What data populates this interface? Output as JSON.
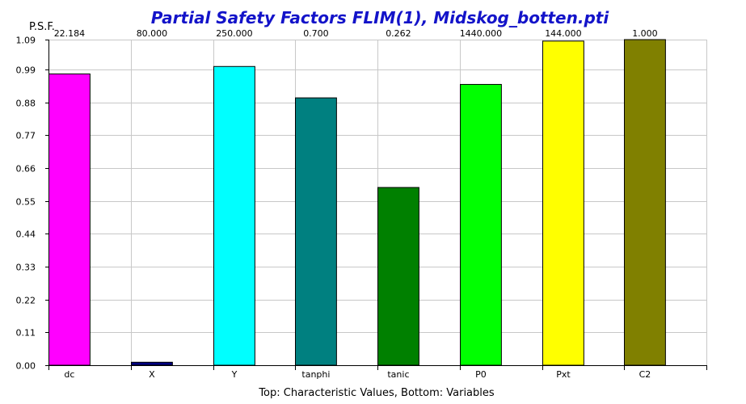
{
  "chart_data": {
    "type": "bar",
    "title": "Partial Safety Factors FLIM(1), Midskog_botten.pti",
    "ylabel": "P.S.F.",
    "xlabel": "Top: Characteristic Values, Bottom: Variables",
    "ylim": [
      0,
      1.09
    ],
    "y_ticks": [
      "0.00",
      "0.11",
      "0.22",
      "0.33",
      "0.44",
      "0.55",
      "0.66",
      "0.77",
      "0.88",
      "0.99",
      "1.09"
    ],
    "grid": true,
    "categories": [
      "dc",
      "X",
      "Y",
      "tanphi",
      "tanic",
      "P0",
      "Pxt",
      "C2"
    ],
    "top_labels": [
      "22.184",
      "80.000",
      "250.000",
      "0.700",
      "0.262",
      "1440.000",
      "144.000",
      "1.000"
    ],
    "values": [
      0.975,
      0.01,
      1.0,
      0.895,
      0.595,
      0.94,
      1.085,
      1.09
    ],
    "colors": [
      "#ff00ff",
      "#000080",
      "#00ffff",
      "#008080",
      "#008000",
      "#00ff00",
      "#ffff00",
      "#808000"
    ]
  }
}
